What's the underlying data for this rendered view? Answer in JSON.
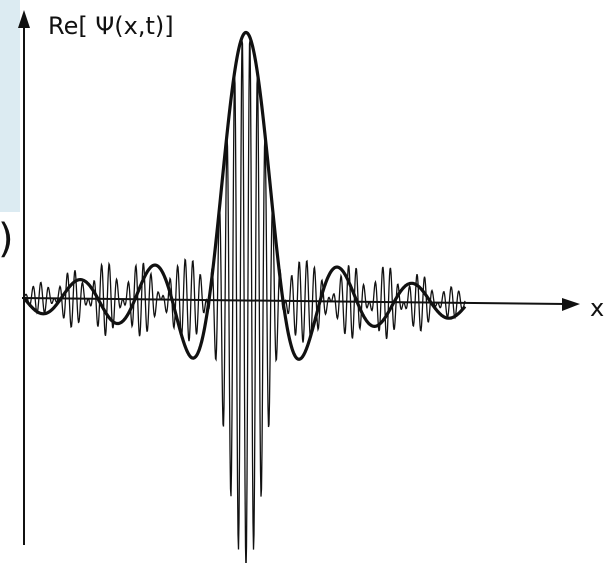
{
  "axes": {
    "y_label": "Re[ Ψ(x,t)]",
    "x_label": "x",
    "edge_mark": ")"
  }
}
